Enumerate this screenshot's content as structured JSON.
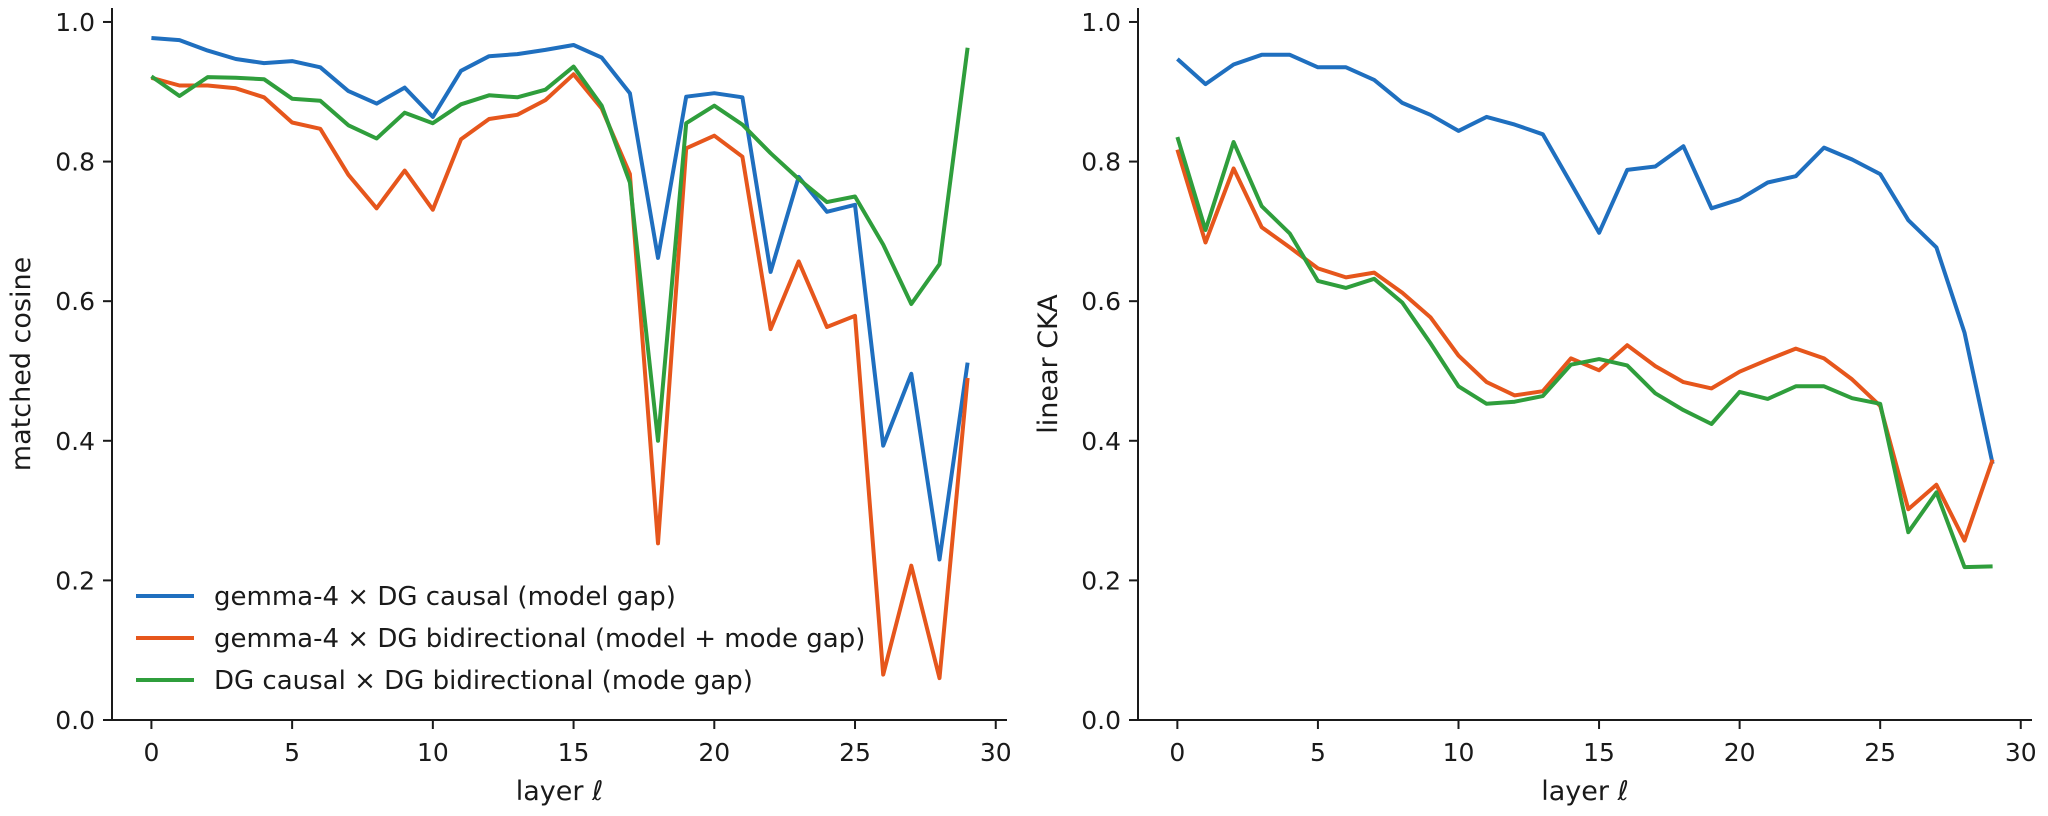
{
  "chart_data": [
    {
      "type": "line",
      "xlabel": "layer ℓ",
      "ylabel": "matched cosine",
      "xlim": [
        -1.4,
        30.4
      ],
      "ylim": [
        0.0,
        1.02
      ],
      "xticks": [
        0,
        5,
        10,
        15,
        20,
        25,
        30
      ],
      "yticks": [
        0.0,
        0.2,
        0.4,
        0.6,
        0.8,
        1.0
      ],
      "grid": false,
      "legend_position": "lower-left",
      "x": [
        0,
        1,
        2,
        3,
        4,
        5,
        6,
        7,
        8,
        9,
        10,
        11,
        12,
        13,
        14,
        15,
        16,
        17,
        18,
        19,
        20,
        21,
        22,
        23,
        24,
        25,
        26,
        27,
        28,
        29
      ],
      "series": [
        {
          "name": "gemma-4 × DG causal (model gap)",
          "color": "#1f6fbf",
          "values": [
            0.977,
            0.974,
            0.959,
            0.947,
            0.941,
            0.944,
            0.935,
            0.901,
            0.883,
            0.906,
            0.864,
            0.93,
            0.951,
            0.954,
            0.96,
            0.967,
            0.949,
            0.898,
            0.662,
            0.893,
            0.898,
            0.892,
            0.642,
            0.778,
            0.728,
            0.738,
            0.393,
            0.496,
            0.23,
            0.512
          ]
        },
        {
          "name": "gemma-4 × DG bidirectional (model + mode gap)",
          "color": "#e6561c",
          "values": [
            0.92,
            0.909,
            0.909,
            0.905,
            0.892,
            0.856,
            0.847,
            0.781,
            0.733,
            0.787,
            0.731,
            0.832,
            0.861,
            0.867,
            0.888,
            0.925,
            0.876,
            0.782,
            0.253,
            0.819,
            0.837,
            0.807,
            0.56,
            0.657,
            0.563,
            0.579,
            0.065,
            0.221,
            0.06,
            0.49
          ]
        },
        {
          "name": "DG causal × DG bidirectional (mode gap)",
          "color": "#2f9e3c",
          "values": [
            0.922,
            0.894,
            0.921,
            0.92,
            0.918,
            0.89,
            0.887,
            0.852,
            0.833,
            0.87,
            0.855,
            0.882,
            0.895,
            0.892,
            0.903,
            0.936,
            0.88,
            0.77,
            0.4,
            0.855,
            0.88,
            0.853,
            0.812,
            0.775,
            0.742,
            0.75,
            0.681,
            0.596,
            0.653,
            0.963
          ]
        }
      ]
    },
    {
      "type": "line",
      "xlabel": "layer ℓ",
      "ylabel": "linear CKA",
      "xlim": [
        -1.4,
        30.4
      ],
      "ylim": [
        0.0,
        1.02
      ],
      "xticks": [
        0,
        5,
        10,
        15,
        20,
        25,
        30
      ],
      "yticks": [
        0.0,
        0.2,
        0.4,
        0.6,
        0.8,
        1.0
      ],
      "grid": false,
      "x": [
        0,
        1,
        2,
        3,
        4,
        5,
        6,
        7,
        8,
        9,
        10,
        11,
        12,
        13,
        14,
        15,
        16,
        17,
        18,
        19,
        20,
        21,
        22,
        23,
        24,
        25,
        26,
        27,
        28,
        29
      ],
      "series": [
        {
          "color": "#1f6fbf",
          "values": [
            0.947,
            0.911,
            0.939,
            0.953,
            0.953,
            0.935,
            0.935,
            0.917,
            0.884,
            0.867,
            0.844,
            0.864,
            0.853,
            0.839,
            0.769,
            0.698,
            0.788,
            0.793,
            0.822,
            0.733,
            0.746,
            0.77,
            0.779,
            0.82,
            0.803,
            0.782,
            0.716,
            0.677,
            0.555,
            0.367
          ]
        },
        {
          "color": "#e6561c",
          "values": [
            0.817,
            0.684,
            0.79,
            0.706,
            0.677,
            0.647,
            0.634,
            0.641,
            0.612,
            0.577,
            0.522,
            0.484,
            0.465,
            0.471,
            0.518,
            0.501,
            0.537,
            0.507,
            0.484,
            0.475,
            0.499,
            0.516,
            0.532,
            0.518,
            0.488,
            0.45,
            0.302,
            0.337,
            0.257,
            0.373
          ]
        },
        {
          "color": "#2f9e3c",
          "values": [
            0.835,
            0.702,
            0.828,
            0.736,
            0.697,
            0.629,
            0.619,
            0.632,
            0.598,
            0.54,
            0.478,
            0.453,
            0.456,
            0.464,
            0.509,
            0.517,
            0.508,
            0.468,
            0.444,
            0.424,
            0.47,
            0.46,
            0.478,
            0.478,
            0.461,
            0.453,
            0.269,
            0.326,
            0.219,
            0.22
          ]
        }
      ]
    }
  ]
}
